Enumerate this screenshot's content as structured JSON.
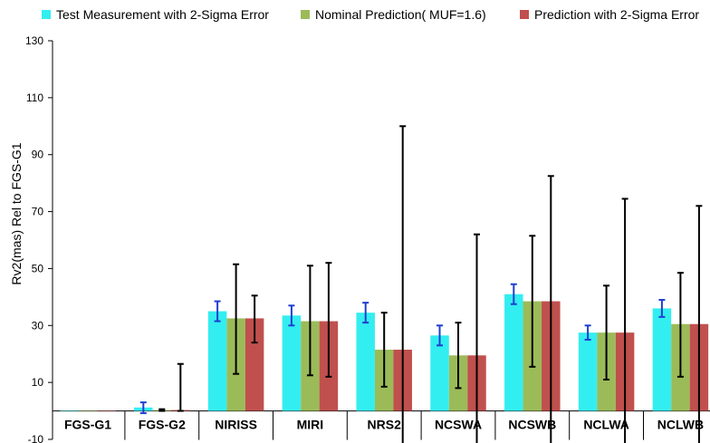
{
  "chart_data": {
    "type": "bar",
    "ylabel": "Rv2(mas) Rel to FGS-G1",
    "xlabel": "",
    "title": "",
    "ylim": [
      -10,
      130
    ],
    "yticks": [
      -10,
      10,
      30,
      50,
      70,
      90,
      110,
      130
    ],
    "grid": false,
    "legend_position": "top",
    "categories": [
      "FGS-G1",
      "FGS-G2",
      "NIRISS",
      "MIRI",
      "NRS2",
      "NCSWA",
      "NCSWB",
      "NCLWA",
      "NCLWB"
    ],
    "series": [
      {
        "name": "Test Measurement with 2-Sigma Error",
        "color": "#33eef0",
        "error_color": "#1f3fd0",
        "values": [
          0,
          1.2,
          35,
          33.5,
          34.5,
          26.5,
          41,
          27.5,
          36
        ],
        "err_low": [
          0,
          -0.8,
          31.5,
          30,
          31,
          23,
          37.5,
          25,
          33
        ],
        "err_high": [
          0,
          3,
          38.5,
          37,
          38,
          30,
          44.5,
          30,
          39
        ]
      },
      {
        "name": "Nominal Prediction( MUF=1.6)",
        "color": "#9bbb59",
        "error_color": "#000000",
        "values": [
          0,
          0.3,
          32.5,
          31.5,
          21.5,
          19.5,
          38.5,
          27.5,
          30.5
        ],
        "err_low": [
          0,
          0,
          13,
          12.5,
          8.5,
          8,
          15.5,
          11,
          12
        ],
        "err_high": [
          0,
          0.6,
          51.5,
          51,
          34.5,
          31,
          61.5,
          44,
          48.5
        ]
      },
      {
        "name": "Prediction with 2-Sigma Error",
        "color": "#c0504d",
        "error_color": "#000000",
        "values": [
          0,
          0.3,
          32.5,
          31.5,
          21.5,
          19.5,
          38.5,
          27.5,
          30.5
        ],
        "err_low": [
          0,
          0,
          24,
          12,
          -12,
          -12,
          -12,
          -12,
          -12
        ],
        "err_high": [
          0,
          16.5,
          40.5,
          52,
          100,
          62,
          82.5,
          74.5,
          72
        ]
      }
    ]
  }
}
